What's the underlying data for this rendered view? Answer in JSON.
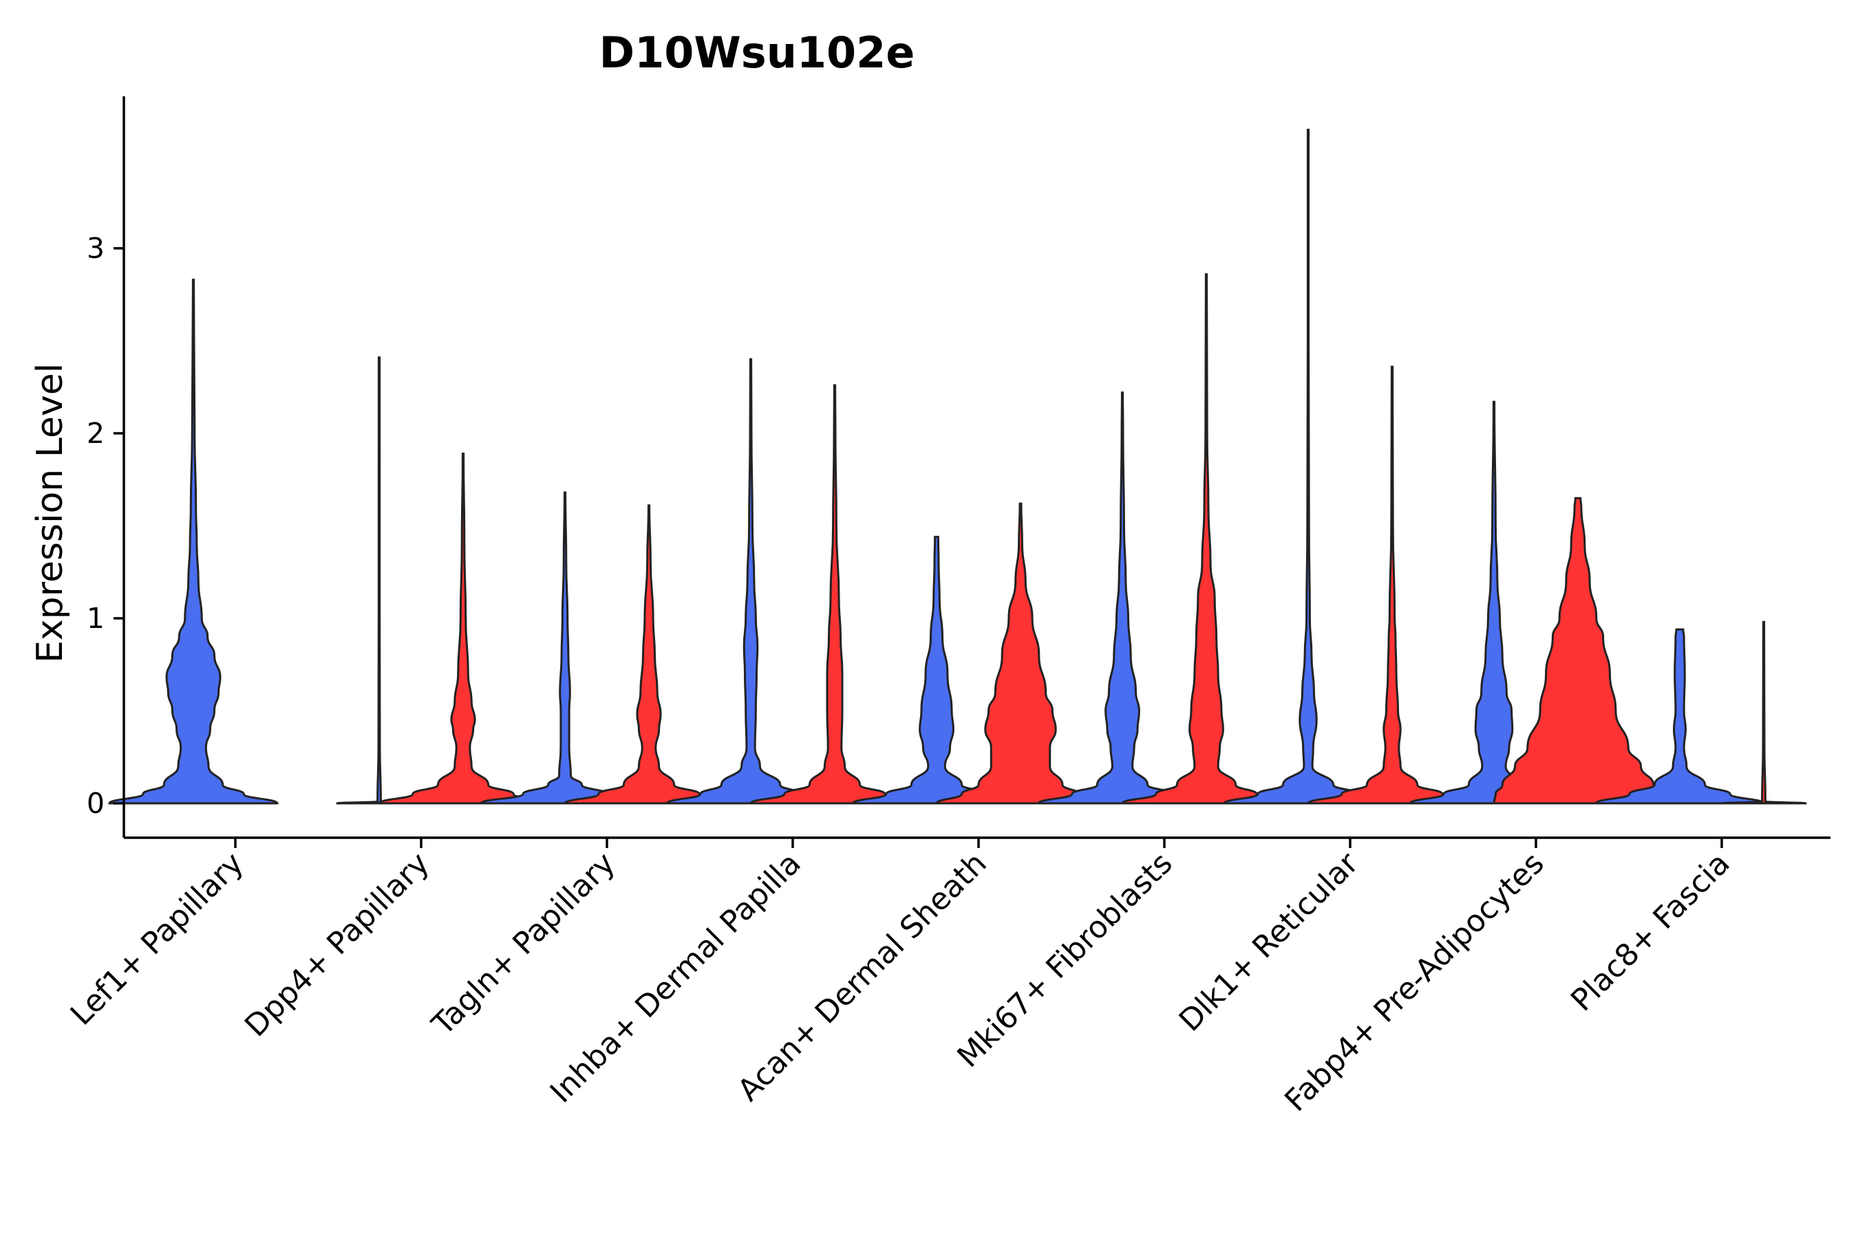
{
  "chart_data": {
    "type": "violin",
    "title": "D10Wsu102e",
    "xlabel": "",
    "ylabel": "Expression Level",
    "ylim": [
      -0.18,
      3.82
    ],
    "yticks": [
      0,
      1,
      2,
      3
    ],
    "grid": false,
    "legend": "none",
    "colors": {
      "group_a": "#4A6EF0",
      "group_b": "#FF3333",
      "outline": "#222222"
    },
    "categories": [
      "Lef1+ Papillary",
      "Dpp4+ Papillary",
      "Tagln+ Papillary",
      "Inhba+ Dermal Papilla",
      "Acan+ Dermal Sheath",
      "Mki67+ Fibroblasts",
      "Dlk1+ Reticular",
      "Fabp4+ Pre-Adipocytes",
      "Plac8+ Fascia"
    ],
    "series": [
      {
        "name": "group_a",
        "max_values": [
          2.83,
          2.41,
          1.68,
          2.4,
          1.44,
          2.22,
          3.64,
          2.17,
          0.94
        ],
        "profiles": [
          [
            [
              0,
              1.0
            ],
            [
              0.05,
              0.6
            ],
            [
              0.1,
              0.35
            ],
            [
              0.2,
              0.18
            ],
            [
              0.3,
              0.15
            ],
            [
              0.4,
              0.2
            ],
            [
              0.5,
              0.25
            ],
            [
              0.6,
              0.3
            ],
            [
              0.68,
              0.32
            ],
            [
              0.8,
              0.25
            ],
            [
              0.9,
              0.17
            ],
            [
              1.0,
              0.1
            ],
            [
              1.2,
              0.06
            ],
            [
              1.4,
              0.04
            ],
            [
              1.6,
              0.03
            ],
            [
              2.0,
              0.015
            ],
            [
              2.5,
              0.008
            ],
            [
              2.83,
              0.005
            ]
          ],
          [
            [
              0,
              0.5
            ],
            [
              0.01,
              0.02
            ],
            [
              0.3,
              0.008
            ],
            [
              1.0,
              0.006
            ],
            [
              2.41,
              0.005
            ]
          ],
          [
            [
              0,
              1.0
            ],
            [
              0.05,
              0.5
            ],
            [
              0.1,
              0.2
            ],
            [
              0.15,
              0.07
            ],
            [
              0.3,
              0.05
            ],
            [
              0.5,
              0.05
            ],
            [
              0.6,
              0.06
            ],
            [
              0.8,
              0.04
            ],
            [
              1.0,
              0.03
            ],
            [
              1.3,
              0.015
            ],
            [
              1.68,
              0.005
            ]
          ],
          [
            [
              0,
              1.0
            ],
            [
              0.05,
              0.6
            ],
            [
              0.1,
              0.35
            ],
            [
              0.2,
              0.11
            ],
            [
              0.3,
              0.05
            ],
            [
              0.5,
              0.06
            ],
            [
              0.7,
              0.07
            ],
            [
              0.85,
              0.08
            ],
            [
              1.0,
              0.06
            ],
            [
              1.2,
              0.04
            ],
            [
              1.5,
              0.02
            ],
            [
              2.0,
              0.008
            ],
            [
              2.4,
              0.005
            ]
          ],
          [
            [
              0,
              1.0
            ],
            [
              0.05,
              0.6
            ],
            [
              0.1,
              0.3
            ],
            [
              0.2,
              0.1
            ],
            [
              0.3,
              0.16
            ],
            [
              0.4,
              0.2
            ],
            [
              0.5,
              0.18
            ],
            [
              0.7,
              0.13
            ],
            [
              0.9,
              0.07
            ],
            [
              1.1,
              0.035
            ],
            [
              1.3,
              0.025
            ],
            [
              1.44,
              0.02
            ]
          ],
          [
            [
              0,
              1.0
            ],
            [
              0.05,
              0.6
            ],
            [
              0.1,
              0.3
            ],
            [
              0.2,
              0.12
            ],
            [
              0.3,
              0.14
            ],
            [
              0.4,
              0.18
            ],
            [
              0.5,
              0.2
            ],
            [
              0.6,
              0.16
            ],
            [
              0.8,
              0.1
            ],
            [
              1.0,
              0.07
            ],
            [
              1.2,
              0.04
            ],
            [
              1.5,
              0.02
            ],
            [
              2.0,
              0.008
            ],
            [
              2.22,
              0.005
            ]
          ],
          [
            [
              0,
              1.0
            ],
            [
              0.05,
              0.6
            ],
            [
              0.1,
              0.3
            ],
            [
              0.2,
              0.05
            ],
            [
              0.3,
              0.06
            ],
            [
              0.45,
              0.1
            ],
            [
              0.6,
              0.07
            ],
            [
              0.8,
              0.04
            ],
            [
              1.0,
              0.02
            ],
            [
              1.5,
              0.01
            ],
            [
              2.5,
              0.005
            ],
            [
              3.64,
              0.004
            ]
          ],
          [
            [
              0,
              1.0
            ],
            [
              0.05,
              0.6
            ],
            [
              0.1,
              0.3
            ],
            [
              0.2,
              0.14
            ],
            [
              0.3,
              0.18
            ],
            [
              0.4,
              0.22
            ],
            [
              0.5,
              0.21
            ],
            [
              0.6,
              0.15
            ],
            [
              0.8,
              0.1
            ],
            [
              1.0,
              0.07
            ],
            [
              1.2,
              0.04
            ],
            [
              1.5,
              0.02
            ],
            [
              2.17,
              0.005
            ]
          ],
          [
            [
              0,
              1.0
            ],
            [
              0.05,
              0.6
            ],
            [
              0.1,
              0.3
            ],
            [
              0.2,
              0.08
            ],
            [
              0.3,
              0.05
            ],
            [
              0.4,
              0.07
            ],
            [
              0.5,
              0.05
            ],
            [
              0.7,
              0.06
            ],
            [
              0.9,
              0.05
            ],
            [
              0.94,
              0.04
            ]
          ]
        ]
      },
      {
        "name": "group_b",
        "max_values": [
          null,
          1.89,
          1.61,
          2.26,
          1.62,
          2.86,
          2.36,
          1.65,
          0.98
        ],
        "profiles": [
          [],
          [
            [
              0,
              1.0
            ],
            [
              0.05,
              0.6
            ],
            [
              0.1,
              0.3
            ],
            [
              0.2,
              0.1
            ],
            [
              0.3,
              0.08
            ],
            [
              0.4,
              0.12
            ],
            [
              0.45,
              0.14
            ],
            [
              0.55,
              0.1
            ],
            [
              0.7,
              0.06
            ],
            [
              1.0,
              0.03
            ],
            [
              1.4,
              0.015
            ],
            [
              1.89,
              0.005
            ]
          ],
          [
            [
              0,
              1.0
            ],
            [
              0.05,
              0.6
            ],
            [
              0.1,
              0.3
            ],
            [
              0.2,
              0.12
            ],
            [
              0.3,
              0.08
            ],
            [
              0.4,
              0.12
            ],
            [
              0.48,
              0.14
            ],
            [
              0.6,
              0.1
            ],
            [
              0.8,
              0.07
            ],
            [
              1.0,
              0.05
            ],
            [
              1.3,
              0.02
            ],
            [
              1.61,
              0.005
            ]
          ],
          [
            [
              0,
              1.0
            ],
            [
              0.05,
              0.6
            ],
            [
              0.1,
              0.3
            ],
            [
              0.2,
              0.12
            ],
            [
              0.3,
              0.08
            ],
            [
              0.5,
              0.09
            ],
            [
              0.7,
              0.09
            ],
            [
              0.9,
              0.07
            ],
            [
              1.1,
              0.05
            ],
            [
              1.5,
              0.02
            ],
            [
              2.0,
              0.008
            ],
            [
              2.26,
              0.005
            ]
          ],
          [
            [
              0,
              1.0
            ],
            [
              0.05,
              0.7
            ],
            [
              0.1,
              0.5
            ],
            [
              0.2,
              0.35
            ],
            [
              0.3,
              0.35
            ],
            [
              0.4,
              0.42
            ],
            [
              0.5,
              0.38
            ],
            [
              0.6,
              0.3
            ],
            [
              0.8,
              0.22
            ],
            [
              1.0,
              0.14
            ],
            [
              1.2,
              0.06
            ],
            [
              1.4,
              0.02
            ],
            [
              1.62,
              0.008
            ]
          ],
          [
            [
              0,
              1.0
            ],
            [
              0.05,
              0.6
            ],
            [
              0.1,
              0.35
            ],
            [
              0.2,
              0.14
            ],
            [
              0.3,
              0.16
            ],
            [
              0.4,
              0.2
            ],
            [
              0.5,
              0.18
            ],
            [
              0.7,
              0.14
            ],
            [
              0.9,
              0.12
            ],
            [
              1.1,
              0.1
            ],
            [
              1.3,
              0.05
            ],
            [
              1.6,
              0.025
            ],
            [
              2.0,
              0.01
            ],
            [
              2.86,
              0.004
            ]
          ],
          [
            [
              0,
              1.0
            ],
            [
              0.05,
              0.6
            ],
            [
              0.1,
              0.3
            ],
            [
              0.2,
              0.1
            ],
            [
              0.3,
              0.08
            ],
            [
              0.4,
              0.1
            ],
            [
              0.5,
              0.07
            ],
            [
              0.7,
              0.05
            ],
            [
              0.9,
              0.04
            ],
            [
              1.0,
              0.03
            ],
            [
              1.5,
              0.01
            ],
            [
              2.36,
              0.005
            ]
          ],
          [
            [
              0,
              1.0
            ],
            [
              0.05,
              0.98
            ],
            [
              0.1,
              0.9
            ],
            [
              0.2,
              0.75
            ],
            [
              0.3,
              0.6
            ],
            [
              0.5,
              0.45
            ],
            [
              0.7,
              0.38
            ],
            [
              0.9,
              0.3
            ],
            [
              1.0,
              0.22
            ],
            [
              1.2,
              0.14
            ],
            [
              1.4,
              0.08
            ],
            [
              1.6,
              0.04
            ],
            [
              1.65,
              0.03
            ]
          ],
          [
            [
              0,
              0.5
            ],
            [
              0.01,
              0.02
            ],
            [
              0.3,
              0.008
            ],
            [
              0.98,
              0.005
            ]
          ]
        ]
      }
    ]
  }
}
